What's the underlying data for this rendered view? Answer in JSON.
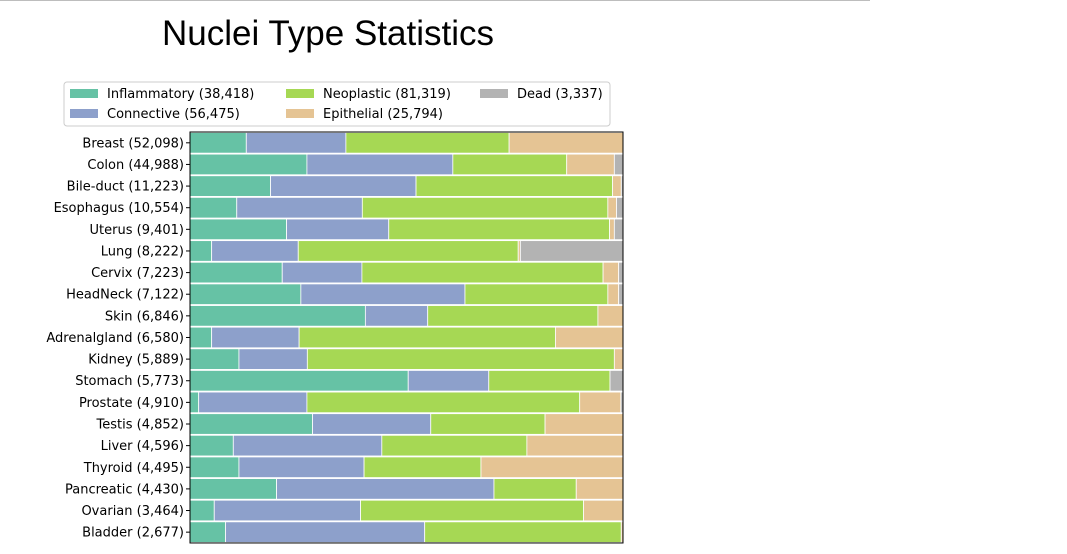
{
  "chart_data": {
    "type": "bar",
    "stacked": true,
    "normalized": true,
    "orientation": "horizontal",
    "title": "Nuclei Type Statistics",
    "legend_position": "top",
    "series": [
      {
        "name": "Inflammatory (38,418)",
        "color": "#66c2a5"
      },
      {
        "name": "Connective (56,475)",
        "color": "#8da0cb"
      },
      {
        "name": "Neoplastic (81,319)",
        "color": "#a6d854"
      },
      {
        "name": "Epithelial (25,794)",
        "color": "#e5c494"
      },
      {
        "name": "Dead (3,337)",
        "color": "#b3b3b3"
      }
    ],
    "categories": [
      "Breast (52,098)",
      "Colon (44,988)",
      "Bile-duct (11,223)",
      "Esophagus (10,554)",
      "Uterus (9,401)",
      "Lung (8,222)",
      "Cervix (7,223)",
      "HeadNeck (7,122)",
      "Skin (6,846)",
      "Adrenalgland (6,580)",
      "Kidney (5,889)",
      "Stomach (5,773)",
      "Prostate (4,910)",
      "Testis (4,852)",
      "Liver (4,596)",
      "Thyroid (4,495)",
      "Pancreatic (4,430)",
      "Ovarian (3,464)",
      "Bladder (2,677)"
    ],
    "fractions": [
      [
        0.13,
        0.23,
        0.377,
        0.263,
        0.0
      ],
      [
        0.27,
        0.337,
        0.263,
        0.11,
        0.02
      ],
      [
        0.186,
        0.336,
        0.454,
        0.02,
        0.004
      ],
      [
        0.108,
        0.29,
        0.567,
        0.02,
        0.015
      ],
      [
        0.223,
        0.236,
        0.51,
        0.011,
        0.02
      ],
      [
        0.05,
        0.2,
        0.508,
        0.005,
        0.237
      ],
      [
        0.213,
        0.184,
        0.557,
        0.036,
        0.01
      ],
      [
        0.256,
        0.379,
        0.33,
        0.025,
        0.01
      ],
      [
        0.405,
        0.144,
        0.393,
        0.058,
        0.0
      ],
      [
        0.05,
        0.202,
        0.592,
        0.156,
        0.0
      ],
      [
        0.113,
        0.158,
        0.709,
        0.02,
        0.0
      ],
      [
        0.504,
        0.186,
        0.28,
        0.0,
        0.03
      ],
      [
        0.02,
        0.25,
        0.63,
        0.095,
        0.005
      ],
      [
        0.283,
        0.273,
        0.264,
        0.18,
        0.0
      ],
      [
        0.1,
        0.343,
        0.335,
        0.222,
        0.0
      ],
      [
        0.113,
        0.289,
        0.27,
        0.328,
        0.0
      ],
      [
        0.2,
        0.502,
        0.19,
        0.108,
        0.0
      ],
      [
        0.056,
        0.338,
        0.515,
        0.091,
        0.0
      ],
      [
        0.082,
        0.46,
        0.454,
        0.004,
        0.0
      ]
    ],
    "xlim": [
      0,
      1
    ],
    "grid": false
  }
}
